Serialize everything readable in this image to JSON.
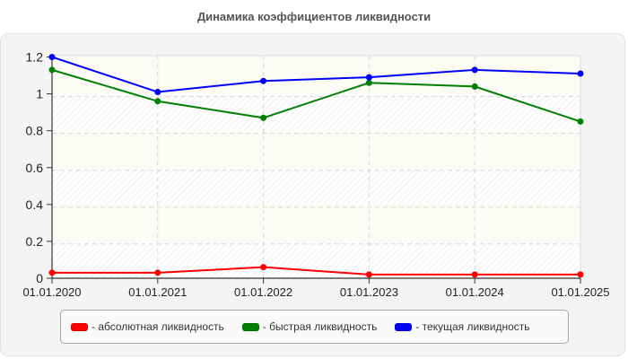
{
  "title": "Динамика коэффициентов ликвидности",
  "chart_data": {
    "type": "line",
    "title": "Динамика коэффициентов ликвидности",
    "xlabel": "",
    "ylabel": "",
    "categories": [
      "01.01.2020",
      "01.01.2021",
      "01.01.2022",
      "01.01.2023",
      "01.01.2024",
      "01.01.2025"
    ],
    "yticks": [
      "0",
      "0.2",
      "0.4",
      "0.6",
      "0.8",
      "1",
      "1.2"
    ],
    "ylim": [
      0,
      1.2
    ],
    "grid": true,
    "legend_position": "bottom",
    "series": [
      {
        "name": "абсолютная ликвидность",
        "color": "#ff0000",
        "values": [
          0.03,
          0.03,
          0.06,
          0.02,
          0.02,
          0.02
        ]
      },
      {
        "name": "быстрая ликвидность",
        "color": "#008000",
        "values": [
          1.13,
          0.96,
          0.87,
          1.06,
          1.04,
          0.85
        ]
      },
      {
        "name": "текущая ликвидность",
        "color": "#0000ff",
        "values": [
          1.2,
          1.01,
          1.07,
          1.09,
          1.13,
          1.11
        ]
      }
    ]
  },
  "legend": {
    "items": [
      {
        "label": "- абсолютная ликвидность",
        "color": "#ff0000"
      },
      {
        "label": "- быстрая ликвидность",
        "color": "#008000"
      },
      {
        "label": "- текущая ликвидность",
        "color": "#0000ff"
      }
    ]
  }
}
